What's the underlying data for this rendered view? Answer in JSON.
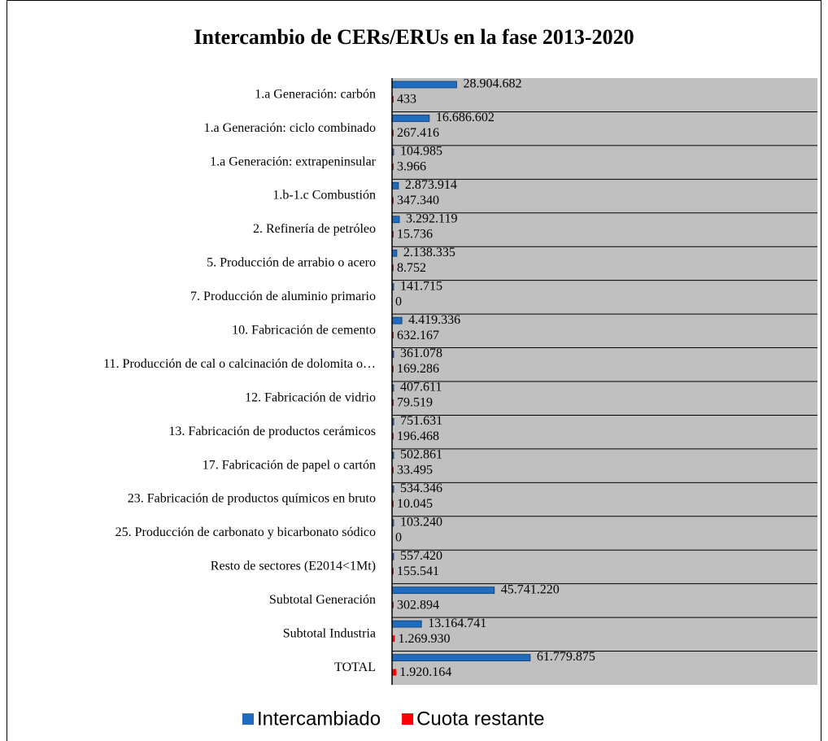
{
  "chart_data": {
    "type": "bar",
    "orientation": "horizontal",
    "title": "Intercambio de CERs/ERUs en la fase 2013-2020",
    "categories": [
      "1.a Generación: carbón",
      "1.a Generación: ciclo combinado",
      "1.a Generación: extrapeninsular",
      "1.b-1.c Combustión",
      "2. Refinería de petróleo",
      "5. Producción de arrabio o acero",
      "7. Producción de aluminio primario",
      "10. Fabricación de cemento",
      "11. Producción de cal o calcinación de dolomita o…",
      "12. Fabricación de vidrio",
      "13. Fabricación de productos cerámicos",
      "17. Fabricación de papel o cartón",
      "23. Fabricación de productos químicos en bruto",
      "25. Producción de carbonato y bicarbonato sódico",
      "Resto de sectores (E2014<1Mt)",
      "Subtotal Generación",
      "Subtotal Industria",
      "TOTAL"
    ],
    "series": [
      {
        "name": "Intercambiado",
        "color": "#1f6cbf",
        "values": [
          28904682,
          16686602,
          104985,
          2873914,
          3292119,
          2138335,
          141715,
          4419336,
          361078,
          407611,
          751631,
          502861,
          534346,
          103240,
          557420,
          45741220,
          13164741,
          61779875
        ],
        "value_labels": [
          "28.904.682",
          "16.686.602",
          "104.985",
          "2.873.914",
          "3.292.119",
          "2.138.335",
          "141.715",
          "4.419.336",
          "361.078",
          "407.611",
          "751.631",
          "502.861",
          "534.346",
          "103.240",
          "557.420",
          "45.741.220",
          "13.164.741",
          "61.779.875"
        ]
      },
      {
        "name": "Cuota restante",
        "color": "#ff0000",
        "values": [
          433,
          267416,
          3966,
          347340,
          15736,
          8752,
          0,
          632167,
          169286,
          79519,
          196468,
          33495,
          10045,
          0,
          155541,
          302894,
          1269930,
          1920164
        ],
        "value_labels": [
          "433",
          "267.416",
          "3.966",
          "347.340",
          "15.736",
          "8.752",
          "0",
          "632.167",
          "169.286",
          "79.519",
          "196.468",
          "33.495",
          "10.045",
          "0",
          "155.541",
          "302.894",
          "1.269.930",
          "1.920.164"
        ]
      }
    ],
    "legend": "bottom"
  }
}
